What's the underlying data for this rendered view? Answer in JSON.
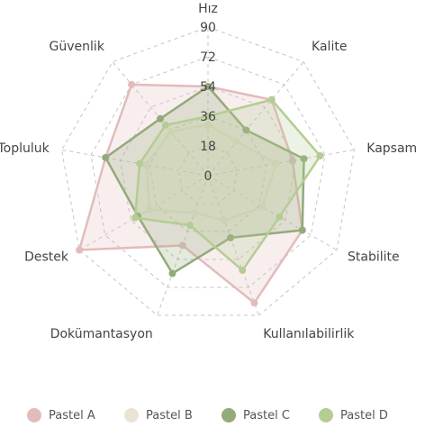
{
  "chart_data": {
    "type": "radar",
    "axes": [
      "Hız",
      "Kalite",
      "Kapsam",
      "Stabilite",
      "Kullanılabilirlik",
      "Dokümantasyon",
      "Destek",
      "Topluluk",
      "Güvenlik"
    ],
    "r_ticks": [
      "0",
      "18",
      "36",
      "54",
      "72",
      "90"
    ],
    "r_range": [
      0,
      90
    ],
    "grid": true,
    "legend_position": "bottom",
    "series": [
      {
        "name": "Pastel A",
        "color": "#e2bcbc",
        "values": [
          54,
          60,
          52,
          66,
          82,
          45,
          90,
          63,
          72
        ]
      },
      {
        "name": "Pastel B",
        "color": "#e9e4d4",
        "values": [
          31,
          27,
          42,
          38,
          29,
          24,
          41,
          38,
          35
        ]
      },
      {
        "name": "Pastel C",
        "color": "#93aa7a",
        "values": [
          54,
          36,
          59,
          66,
          40,
          63,
          49,
          63,
          45
        ]
      },
      {
        "name": "Pastel D",
        "color": "#b5cc93",
        "values": [
          36,
          60,
          69,
          50,
          61,
          32,
          51,
          42,
          40
        ]
      }
    ]
  }
}
